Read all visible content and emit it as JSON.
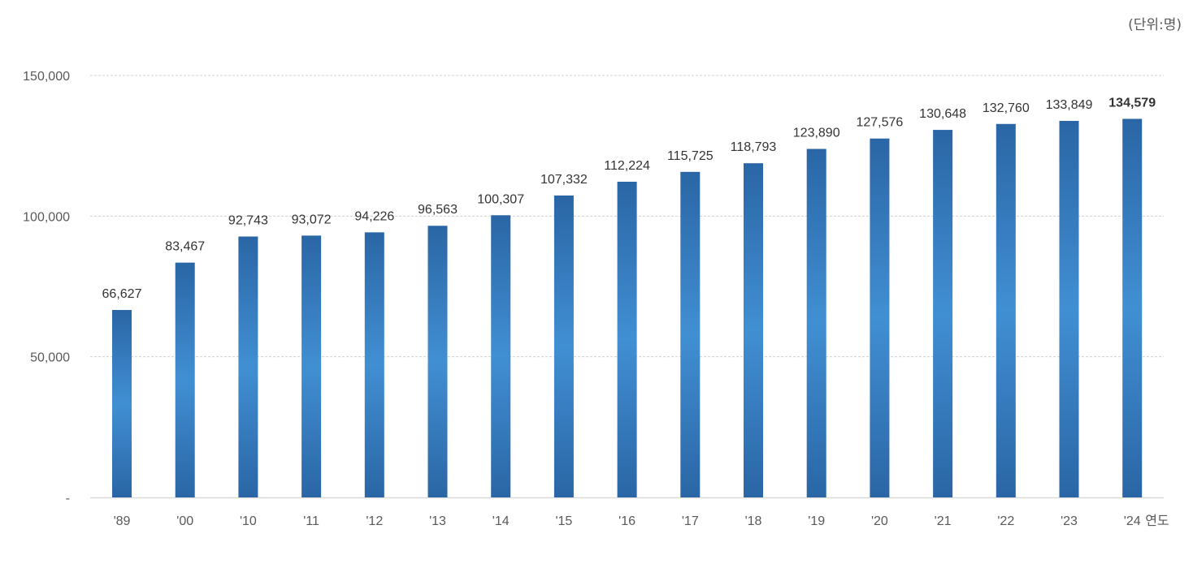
{
  "chart_data": {
    "type": "bar",
    "title": "",
    "unit_label": "(단위:명)",
    "xlabel": "연도",
    "ylabel": "",
    "categories": [
      "'89",
      "'00",
      "'10",
      "'11",
      "'12",
      "'13",
      "'14",
      "'15",
      "'16",
      "'17",
      "'18",
      "'19",
      "'20",
      "'21",
      "'22",
      "'23",
      "'24"
    ],
    "values": [
      66627,
      83467,
      92743,
      93072,
      94226,
      96563,
      100307,
      107332,
      112224,
      115725,
      118793,
      123890,
      127576,
      130648,
      132760,
      133849,
      134579
    ],
    "data_labels": [
      "66,627",
      "83,467",
      "92,743",
      "93,072",
      "94,226",
      "96,563",
      "100,307",
      "107,332",
      "112,224",
      "115,725",
      "118,793",
      "123,890",
      "127,576",
      "130,648",
      "132,760",
      "133,849",
      "134,579"
    ],
    "highlight_last_label_bold": true,
    "ylim": [
      0,
      150000
    ],
    "yticks": [
      0,
      50000,
      100000,
      150000
    ],
    "ytick_labels": [
      "-",
      "50,000",
      "100,000",
      "150,000"
    ],
    "grid": true,
    "legend": "none",
    "colors": {
      "bar_dark": "#2a66a5",
      "bar_light": "#418fd3",
      "grid": "#d0d0d0",
      "text": "#404040"
    }
  }
}
